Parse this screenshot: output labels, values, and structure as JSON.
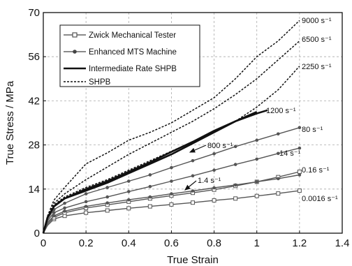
{
  "chart_data": {
    "type": "line",
    "xlabel": "True Strain",
    "ylabel": "True Stress / MPa",
    "xlim": [
      0,
      1.4
    ],
    "ylim": [
      0,
      70
    ],
    "x_ticks": [
      "0",
      "0.2",
      "0.4",
      "0.6",
      "0.8",
      "1",
      "1.2",
      "1.4"
    ],
    "y_ticks": [
      "0",
      "14",
      "28",
      "42",
      "56",
      "70"
    ],
    "x_tick_values": [
      0,
      0.2,
      0.4,
      0.6,
      0.8,
      1.0,
      1.2,
      1.4
    ],
    "y_tick_values": [
      0,
      14,
      28,
      42,
      56,
      70
    ],
    "grid": true,
    "legend_position": "top-left",
    "legend": [
      {
        "label": "Zwick Mechanical Tester",
        "style": "square-marker"
      },
      {
        "label": "Enhanced MTS Machine",
        "style": "dot-marker"
      },
      {
        "label": "Intermediate Rate SHPB",
        "style": "thick"
      },
      {
        "label": "SHPB",
        "style": "dashed"
      }
    ],
    "series": [
      {
        "rate": "0.0016 s⁻¹",
        "style": "square-marker",
        "x": [
          0,
          0.02,
          0.05,
          0.1,
          0.2,
          0.3,
          0.4,
          0.5,
          0.6,
          0.7,
          0.8,
          0.9,
          1.0,
          1.1,
          1.2
        ],
        "y": [
          0,
          2.5,
          4.5,
          5.5,
          6.5,
          7.2,
          7.9,
          8.5,
          9.1,
          9.7,
          10.4,
          11.0,
          11.8,
          12.6,
          13.5
        ]
      },
      {
        "rate": "0.16 s⁻¹",
        "style": "square-marker",
        "x": [
          0,
          0.02,
          0.05,
          0.1,
          0.2,
          0.3,
          0.4,
          0.5,
          0.6,
          0.7,
          0.8,
          0.9,
          1.0,
          1.1,
          1.2
        ],
        "y": [
          0,
          3,
          5,
          6.5,
          8,
          9,
          10,
          11,
          11.9,
          12.8,
          13.8,
          15,
          16.3,
          17.8,
          19.5
        ]
      },
      {
        "rate": "1.4 s⁻¹",
        "style": "dot-marker",
        "x": [
          0,
          0.02,
          0.05,
          0.1,
          0.2,
          0.3,
          0.4,
          0.5,
          0.6,
          0.7,
          0.8,
          0.9,
          1.0,
          1.1,
          1.2
        ],
        "y": [
          0,
          3.5,
          5.5,
          7,
          8.5,
          9.6,
          10.6,
          11.5,
          12.5,
          13.4,
          14.4,
          15.3,
          16.3,
          17.3,
          18.5
        ]
      },
      {
        "rate": "14 s⁻¹",
        "style": "dot-marker",
        "x": [
          0,
          0.02,
          0.05,
          0.1,
          0.2,
          0.3,
          0.4,
          0.5,
          0.6,
          0.7,
          0.8,
          0.9,
          1.0,
          1.1,
          1.2
        ],
        "y": [
          0,
          4,
          6.5,
          8,
          10,
          11.5,
          13.2,
          14.8,
          16.5,
          18.2,
          20,
          21.8,
          23.5,
          25.3,
          27
        ]
      },
      {
        "rate": "80 s⁻¹",
        "style": "dot-marker",
        "x": [
          0,
          0.02,
          0.05,
          0.1,
          0.2,
          0.3,
          0.4,
          0.5,
          0.6,
          0.7,
          0.8,
          0.9,
          1.0,
          1.1,
          1.2
        ],
        "y": [
          0,
          4.5,
          7.5,
          9.5,
          12.5,
          14.5,
          16.5,
          18.5,
          20.8,
          23,
          25.2,
          27.5,
          29.5,
          31.5,
          33.5
        ]
      },
      {
        "rate": "800 s⁻¹",
        "style": "thick",
        "x": [
          0,
          0.02,
          0.05,
          0.1,
          0.2,
          0.3,
          0.4,
          0.5,
          0.6,
          0.7,
          0.8,
          0.9,
          1.0
        ],
        "y": [
          0,
          5,
          8.5,
          11,
          13.5,
          16,
          19,
          22,
          25,
          28.5,
          32,
          35.5,
          38.5
        ]
      },
      {
        "rate": "1200 s⁻¹",
        "style": "thick",
        "x": [
          0,
          0.02,
          0.05,
          0.1,
          0.2,
          0.3,
          0.4,
          0.5,
          0.6,
          0.7,
          0.8,
          0.9,
          1.0,
          1.05
        ],
        "y": [
          0,
          5,
          8.5,
          11,
          14,
          16.5,
          19.5,
          22.5,
          25.8,
          29,
          32.5,
          35.5,
          38,
          39
        ]
      },
      {
        "rate": "2250 s⁻¹",
        "style": "dashed",
        "x": [
          0,
          0.02,
          0.05,
          0.1,
          0.2,
          0.3,
          0.4,
          0.5,
          0.6,
          0.7,
          0.8,
          0.9,
          1.0,
          1.1,
          1.2
        ],
        "y": [
          0,
          5,
          9,
          11.5,
          14.5,
          17,
          20,
          23,
          26,
          29,
          32,
          35.5,
          40,
          45.5,
          53
        ]
      },
      {
        "rate": "6500 s⁻¹",
        "style": "dashed",
        "x": [
          0,
          0.02,
          0.05,
          0.1,
          0.2,
          0.3,
          0.4,
          0.5,
          0.6,
          0.7,
          0.8,
          0.9,
          1.0,
          1.1,
          1.2
        ],
        "y": [
          0,
          5,
          9.5,
          12.5,
          17,
          21,
          25,
          28.5,
          32,
          35.5,
          39.5,
          44,
          49,
          55,
          61
        ]
      },
      {
        "rate": "9000 s⁻¹",
        "style": "dashed",
        "x": [
          0,
          0.02,
          0.05,
          0.1,
          0.2,
          0.3,
          0.4,
          0.5,
          0.6,
          0.7,
          0.8,
          0.9,
          1.0,
          1.1,
          1.2
        ],
        "y": [
          0,
          5.5,
          10.5,
          14.5,
          22,
          25.5,
          29.5,
          32,
          35,
          39,
          43,
          49,
          56,
          61,
          67.5
        ]
      }
    ],
    "rate_labels": [
      {
        "text": "9000 s⁻¹",
        "series": "9000 s⁻¹"
      },
      {
        "text": "6500 s⁻¹",
        "series": "6500 s⁻¹"
      },
      {
        "text": "2250 s⁻¹",
        "series": "2250 s⁻¹"
      },
      {
        "text": "1200 s⁻¹",
        "series": "1200 s⁻¹"
      },
      {
        "text": "80 s⁻¹",
        "series": "80 s⁻¹"
      },
      {
        "text": "14 s⁻¹",
        "series": "14 s⁻¹"
      },
      {
        "text": "0.16 s⁻¹",
        "series": "0.16 s⁻¹"
      },
      {
        "text": "0.0016 s⁻¹",
        "series": "0.0016 s⁻¹"
      },
      {
        "text": "800 s⁻¹",
        "series": "800 s⁻¹"
      },
      {
        "text": "1.4 s⁻¹",
        "series": "1.4 s⁻¹"
      }
    ]
  }
}
